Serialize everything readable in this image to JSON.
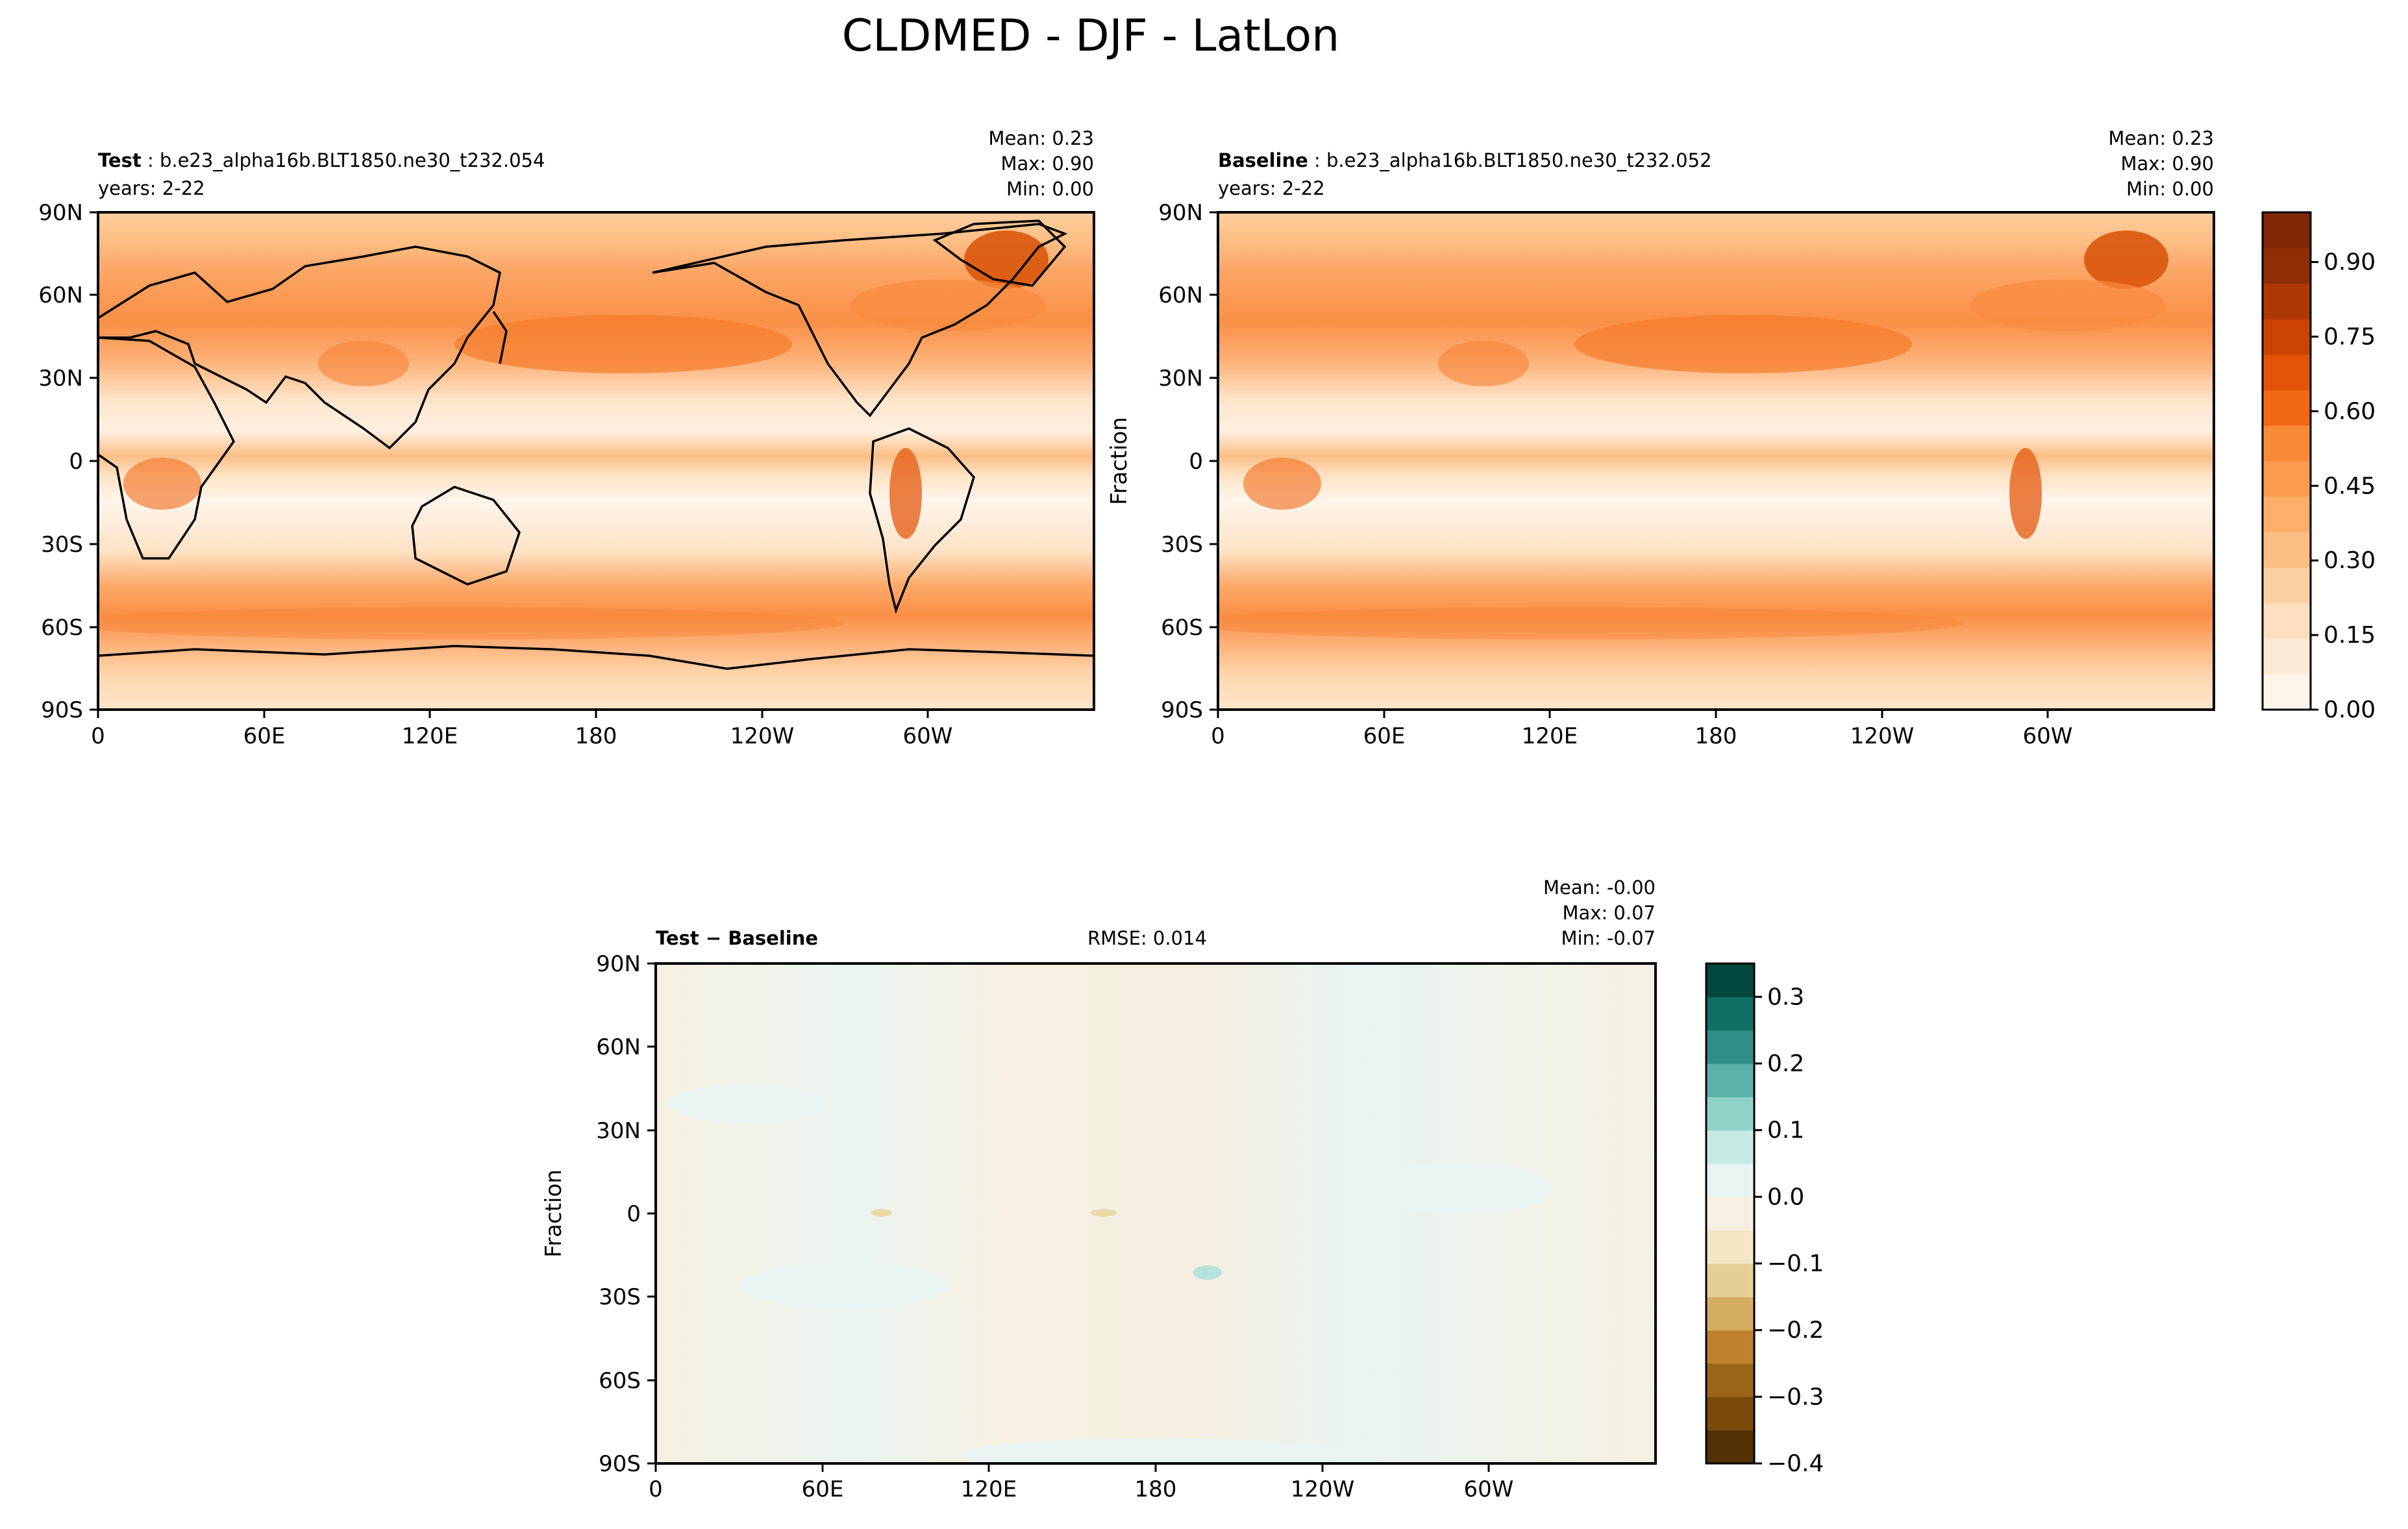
{
  "figure": {
    "title": "CLDMED - DJF - LatLon"
  },
  "colors": {
    "fraction_scale": [
      "#fff5eb",
      "#feebd7",
      "#fee0c1",
      "#fdd0a2",
      "#fdbe85",
      "#fdae6b",
      "#fd9b50",
      "#f98a38",
      "#f16913",
      "#e25508",
      "#cb4302",
      "#ad3803",
      "#8f2d04",
      "#7f2704"
    ],
    "diff_scale": [
      "#543005",
      "#7a4a0b",
      "#9b6519",
      "#bf812d",
      "#d4ad63",
      "#e6cf95",
      "#f3e7c6",
      "#f5f0e1",
      "#e8f3f2",
      "#c7eae5",
      "#8fd3c8",
      "#5ab2a8",
      "#2f8f86",
      "#0e6f64",
      "#01473d"
    ],
    "land_outline": "#000000"
  },
  "chart_data": [
    {
      "type": "heatmap",
      "name": "test",
      "title_bold": "Test",
      "title_case": ": b.e23_alpha16b.BLT1850.ne30_t232.054",
      "years": "years: 2-22",
      "stats": {
        "mean": "Mean:  0.23",
        "max": "Max:  0.90",
        "min": "Min:  0.00"
      },
      "ylabel": "",
      "xticks": [
        "0",
        "60E",
        "120E",
        "180",
        "120W",
        "60W"
      ],
      "yticks": [
        "90N",
        "60N",
        "30N",
        "0",
        "30S",
        "60S",
        "90S"
      ],
      "xlim": [
        0,
        360
      ],
      "ylim": [
        -90,
        90
      ],
      "field_mean": 0.23,
      "field_max": 0.9,
      "field_min": 0.0
    },
    {
      "type": "heatmap",
      "name": "baseline",
      "title_bold": "Baseline",
      "title_case": ": b.e23_alpha16b.BLT1850.ne30_t232.052",
      "years": "years: 2-22",
      "stats": {
        "mean": "Mean:  0.23",
        "max": "Max:  0.90",
        "min": "Min:  0.00"
      },
      "ylabel": "Fraction",
      "xticks": [
        "0",
        "60E",
        "120E",
        "180",
        "120W",
        "60W"
      ],
      "yticks": [
        "90N",
        "60N",
        "30N",
        "0",
        "30S",
        "60S",
        "90S"
      ],
      "xlim": [
        0,
        360
      ],
      "ylim": [
        -90,
        90
      ],
      "field_mean": 0.23,
      "field_max": 0.9,
      "field_min": 0.0,
      "colorbar": {
        "ticks": [
          "0.00",
          "0.15",
          "0.30",
          "0.45",
          "0.60",
          "0.75",
          "0.90"
        ],
        "tick_values": [
          0.0,
          0.15,
          0.3,
          0.45,
          0.6,
          0.75,
          0.9
        ],
        "range": [
          0.0,
          1.0
        ]
      }
    },
    {
      "type": "heatmap",
      "name": "difference",
      "title_bold": "Test − Baseline",
      "rmse": "RMSE: 0.014",
      "stats": {
        "mean": "Mean: -0.00",
        "max": "Max:  0.07",
        "min": "Min: -0.07"
      },
      "ylabel": "Fraction",
      "xticks": [
        "0",
        "60E",
        "120E",
        "180",
        "120W",
        "60W"
      ],
      "yticks": [
        "90N",
        "60N",
        "30N",
        "0",
        "30S",
        "60S",
        "90S"
      ],
      "xlim": [
        0,
        360
      ],
      "ylim": [
        -90,
        90
      ],
      "field_mean": -0.0,
      "field_max": 0.07,
      "field_min": -0.07,
      "colorbar": {
        "ticks": [
          "0.3",
          "0.2",
          "0.1",
          "0.0",
          "−0.1",
          "−0.2",
          "−0.3",
          "−0.4"
        ],
        "tick_values": [
          0.3,
          0.2,
          0.1,
          0.0,
          -0.1,
          -0.2,
          -0.3,
          -0.4
        ],
        "range": [
          -0.4,
          0.35
        ]
      }
    }
  ]
}
